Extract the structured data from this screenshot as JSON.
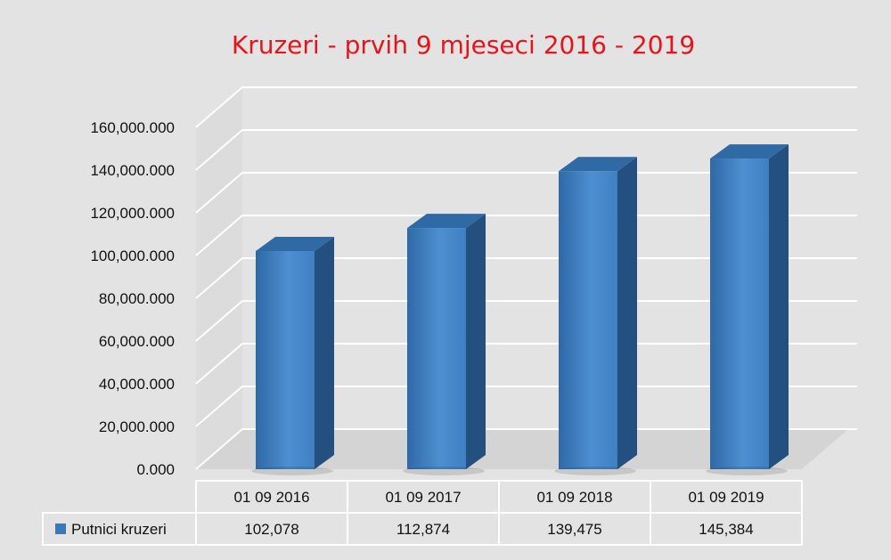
{
  "chart_data": {
    "type": "bar",
    "title": "Kruzeri - prvih 9 mjeseci 2016 - 2019",
    "categories": [
      "01 09 2016",
      "01 09 2017",
      "01 09 2018",
      "01 09 2019"
    ],
    "series": [
      {
        "name": "Putnici kruzeri",
        "values": [
          102078,
          112874,
          139475,
          145384
        ],
        "value_labels": [
          "102,078",
          "112,874",
          "139,475",
          "145,384"
        ],
        "color": "#3a78b8"
      }
    ],
    "yticks": [
      "0.000",
      "20,000.000",
      "40,000.000",
      "60,000.000",
      "80,000.000",
      "100,000.000",
      "120,000.000",
      "140,000.000",
      "160,000.000"
    ],
    "ylim": [
      0,
      160000
    ],
    "grid": true,
    "legend": "data-table",
    "style": "3d-column",
    "colors": {
      "background": "#e3e3e3",
      "title": "#e8141b",
      "bar_front": "#3a78b8",
      "bar_side": "#24507f",
      "bar_top": "#2f6aa5",
      "grid": "#ffffff"
    }
  }
}
